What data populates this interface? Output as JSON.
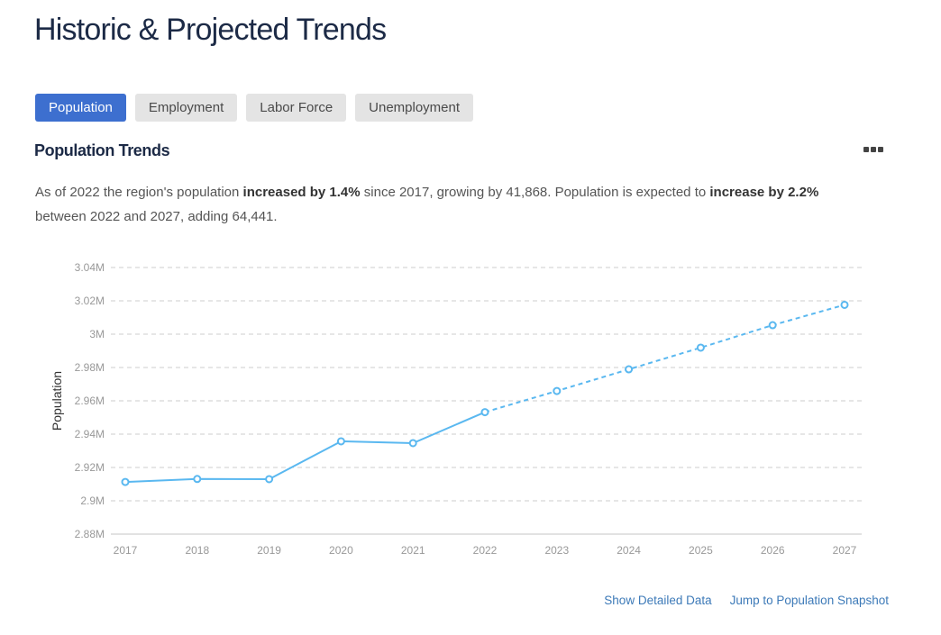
{
  "page": {
    "title": "Historic & Projected Trends"
  },
  "tabs": [
    {
      "label": "Population",
      "active": true
    },
    {
      "label": "Employment",
      "active": false
    },
    {
      "label": "Labor Force",
      "active": false
    },
    {
      "label": "Unemployment",
      "active": false
    }
  ],
  "section": {
    "title": "Population Trends",
    "more_icon": "more-horizontal-icon",
    "summary": {
      "p1": "As of 2022 the region's population ",
      "b1": "increased by 1.4%",
      "p2": " since 2017, growing by 41,868. Population is expected to ",
      "b2": "increase by 2.2%",
      "p3": " between 2022 and 2027, adding 64,441."
    }
  },
  "links": {
    "detailed": "Show Detailed Data",
    "snapshot": "Jump to Population Snapshot"
  },
  "colors": {
    "accent": "#3d6fcf",
    "series": "#5ab8f0",
    "grid": "#cccccc"
  },
  "chart_data": {
    "type": "line",
    "title": "",
    "xlabel": "",
    "ylabel": "Population",
    "x": [
      2017,
      2018,
      2019,
      2020,
      2021,
      2022,
      2023,
      2024,
      2025,
      2026,
      2027
    ],
    "series": [
      {
        "name": "Historic",
        "style": "solid",
        "x": [
          2017,
          2018,
          2019,
          2020,
          2021,
          2022
        ],
        "values": [
          2911300,
          2913100,
          2913000,
          2935700,
          2934600,
          2953200
        ]
      },
      {
        "name": "Projected",
        "style": "dashed",
        "x": [
          2022,
          2023,
          2024,
          2025,
          2026,
          2027
        ],
        "values": [
          2953200,
          2965900,
          2978900,
          2991900,
          3005400,
          3017600
        ]
      }
    ],
    "ylim": [
      2880000,
      3040000
    ],
    "yticks": [
      2880000,
      2900000,
      2920000,
      2940000,
      2960000,
      2980000,
      3000000,
      3020000,
      3040000
    ],
    "ytick_labels": [
      "2.88M",
      "2.9M",
      "2.92M",
      "2.94M",
      "2.96M",
      "2.98M",
      "3M",
      "3.02M",
      "3.04M"
    ],
    "grid": true,
    "legend": "none"
  }
}
